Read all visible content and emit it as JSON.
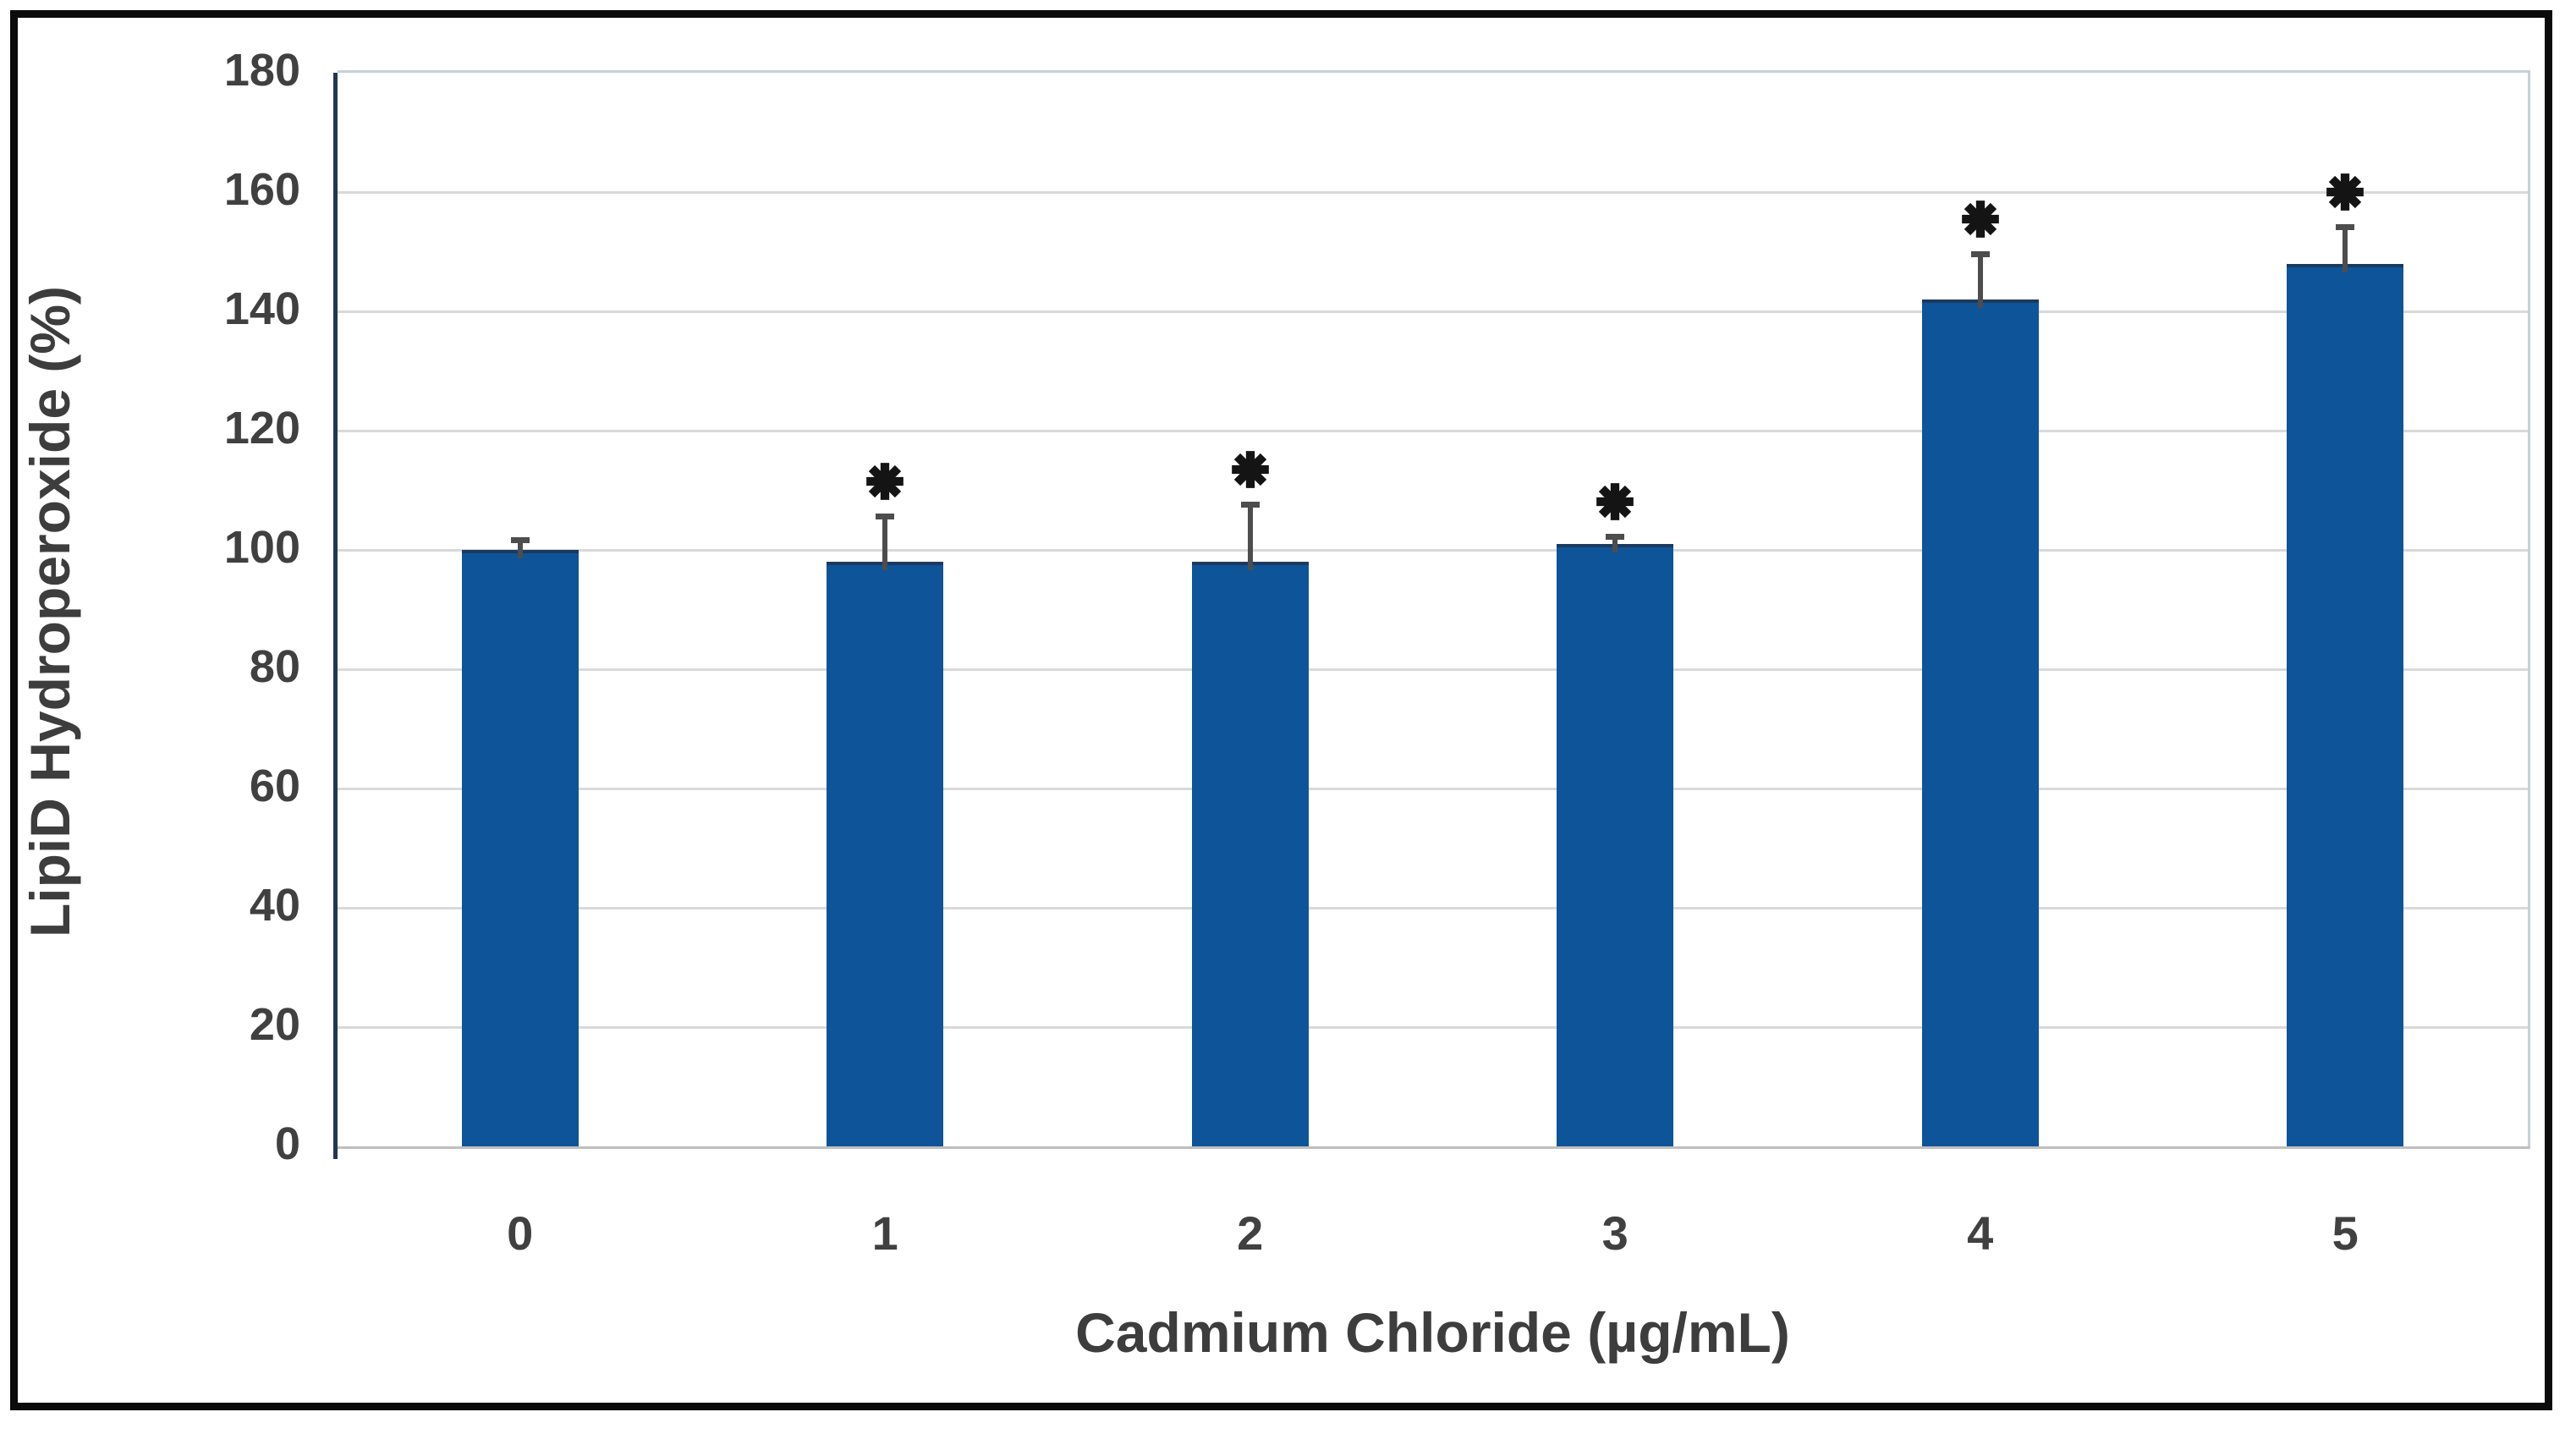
{
  "chart_data": {
    "type": "bar",
    "categories": [
      "0",
      "1",
      "2",
      "3",
      "4",
      "5"
    ],
    "values": [
      100,
      98,
      98,
      101,
      142,
      148
    ],
    "error_plus": [
      2,
      8,
      10,
      1.5,
      8,
      6.5
    ],
    "significant": [
      false,
      true,
      true,
      true,
      true,
      true
    ],
    "significance_marker": "*",
    "xlabel": "Cadmium Chloride (µg/mL)",
    "ylabel": "LipiD Hydroperoxide (%)",
    "ylim": [
      0,
      180
    ],
    "yticks": [
      0,
      20,
      40,
      60,
      80,
      100,
      120,
      140,
      160,
      180
    ],
    "grid": "horizontal",
    "legend": "none",
    "colors": {
      "bar_fill": "#0e5499",
      "bar_top_edge": "#1b3a5f",
      "error_bar": "#4d4d4d",
      "gridline": "#d9d9d9",
      "baseline": "#bfbfbf",
      "y_axis_line": "#22364e",
      "plot_border": "#c5d0d8",
      "tick_text": "#404040",
      "axis_label_text": "#3d3d3d",
      "marker": "#141414",
      "figure_border": "#0b0b0b",
      "background": "#ffffff"
    }
  }
}
